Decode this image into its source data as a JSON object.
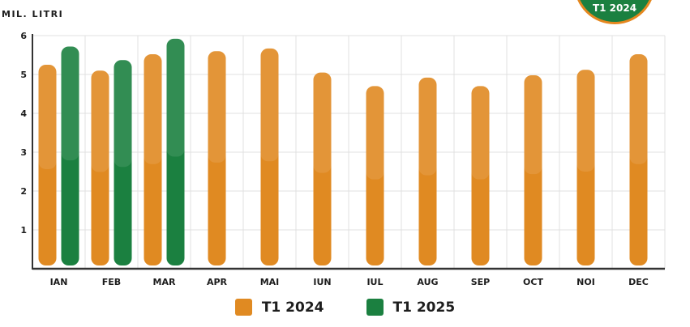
{
  "badge_text": "T1 2024",
  "chart_data": {
    "type": "bar",
    "ylabel": "MIL. LITRI",
    "ylim": [
      0,
      6
    ],
    "yticks": [
      1,
      2,
      3,
      4,
      5,
      6
    ],
    "categories": [
      "IAN",
      "FEB",
      "MAR",
      "APR",
      "MAI",
      "IUN",
      "IUL",
      "AUG",
      "SEP",
      "OCT",
      "NOI",
      "DEC"
    ],
    "series": [
      {
        "name": "T1 2024",
        "color": "#e08a22",
        "values": [
          5.25,
          5.1,
          5.52,
          5.6,
          5.67,
          5.05,
          4.7,
          4.92,
          4.7,
          4.98,
          5.12,
          5.52
        ]
      },
      {
        "name": "T1 2025",
        "color": "#1b8040",
        "values": [
          5.72,
          5.37,
          5.92,
          null,
          null,
          null,
          null,
          null,
          null,
          null,
          null,
          null
        ]
      }
    ],
    "grid": true,
    "legend": "bottom-center"
  }
}
